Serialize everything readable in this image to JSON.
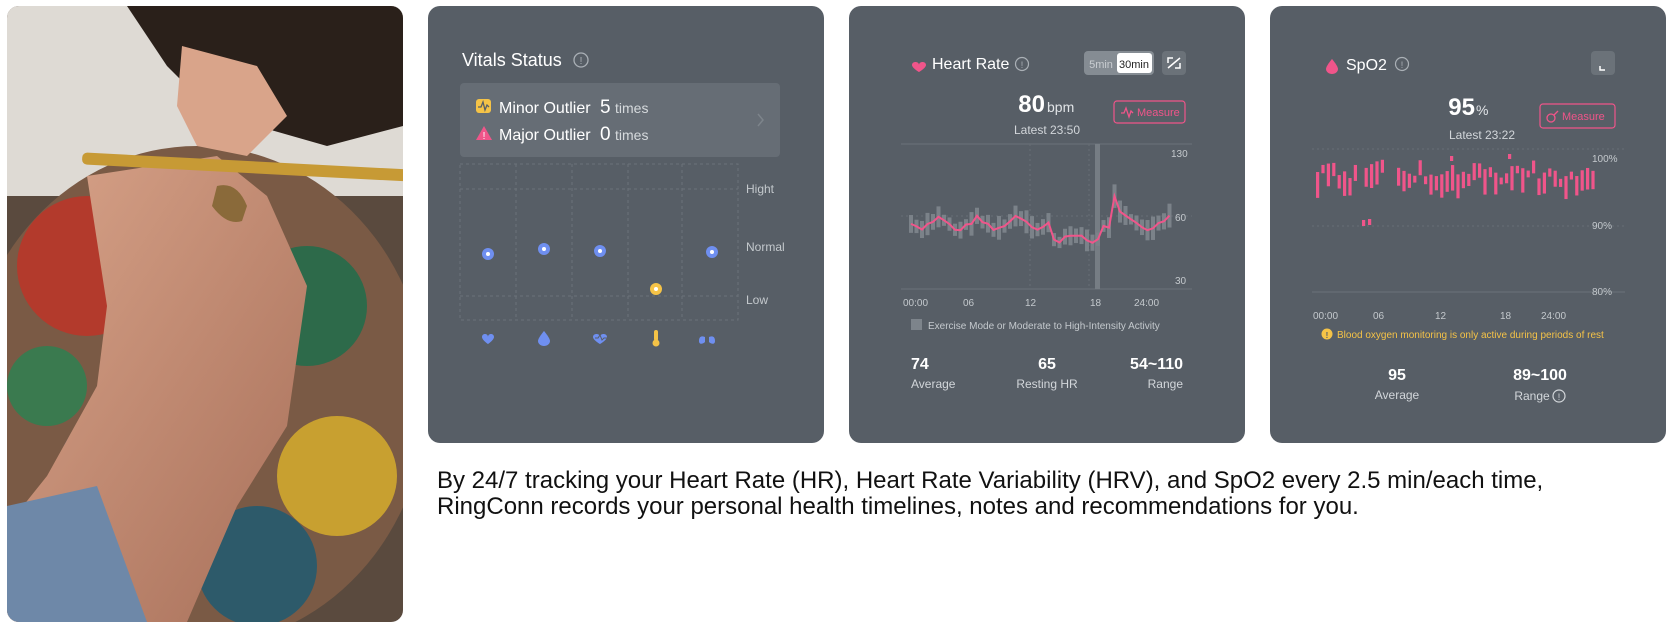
{
  "vitals": {
    "title": "Vitals Status",
    "minor_label": "Minor Outlier",
    "minor_count": "5",
    "minor_unit": "times",
    "major_label": "Major Outlier",
    "major_count": "0",
    "major_unit": "times",
    "level_high": "Hight",
    "level_normal": "Normal",
    "level_low": "Low",
    "status_icons": [
      "heart-icon",
      "drop-icon",
      "heart-pulse-icon",
      "thermometer-icon",
      "lungs-icon"
    ],
    "status_levels": [
      "normal",
      "normal",
      "normal",
      "low",
      "normal"
    ],
    "dot_colors": {
      "normal": "#6f8ff0",
      "low": "#f5c347"
    }
  },
  "heart_rate": {
    "title": "Heart Rate",
    "toggle_5min": "5min",
    "toggle_30min": "30min",
    "value": "80",
    "unit": "bpm",
    "latest": "Latest 23:50",
    "measure_label": "Measure",
    "y_ticks": [
      "130",
      "60",
      "30"
    ],
    "x_ticks": [
      "00:00",
      "06",
      "12",
      "18",
      "24:00"
    ],
    "legend": "Exercise Mode or Moderate to High-Intensity Activity",
    "stats": [
      {
        "value": "74",
        "label": "Average"
      },
      {
        "value": "65",
        "label": "Resting HR"
      },
      {
        "value": "54~110",
        "label": "Range"
      }
    ]
  },
  "spo2": {
    "title": "SpO2",
    "value": "95",
    "unit": "%",
    "latest": "Latest 23:22",
    "measure_label": "Measure",
    "y_ticks": [
      "100%",
      "90%",
      "80%"
    ],
    "x_ticks": [
      "00:00",
      "06",
      "12",
      "18",
      "24:00"
    ],
    "notice": "Blood oxygen monitoring is only active during periods of rest",
    "stats": [
      {
        "value": "95",
        "label": "Average"
      },
      {
        "value": "89~100",
        "label": "Range"
      }
    ]
  },
  "caption": {
    "line1": "By 24/7 tracking your Heart Rate (HR), Heart Rate Variability (HRV), and SpO2 every 2.5 min/each time,",
    "line2": "RingConn records your personal health timelines, notes and recommendations for you."
  },
  "colors": {
    "card_bg": "#575e66",
    "accent_pink": "#f0558a",
    "notice_yellow": "#f5c347",
    "accent_blue": "#6f8ff0"
  }
}
